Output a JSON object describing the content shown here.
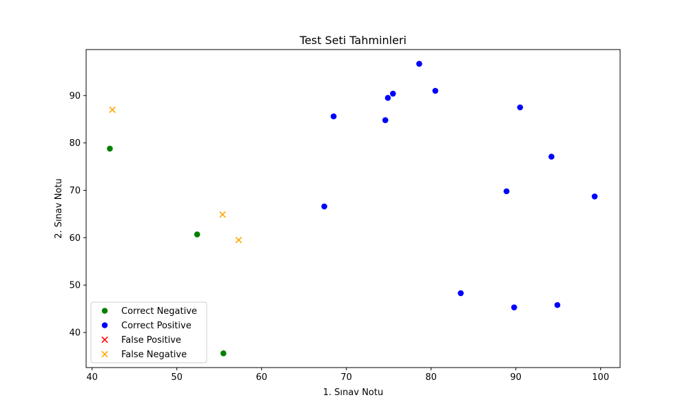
{
  "chart_data": {
    "type": "scatter",
    "title": "Test Seti Tahminleri",
    "xlabel": "1. Sınav Notu",
    "ylabel": "2. Sınav Notu",
    "xlim": [
      39.3,
      102.3
    ],
    "ylim": [
      32.6,
      99.7
    ],
    "xticks": [
      40,
      50,
      60,
      70,
      80,
      90,
      100
    ],
    "yticks": [
      40,
      50,
      60,
      70,
      80,
      90
    ],
    "grid": false,
    "legend_position": "lower-left",
    "series": [
      {
        "name": "Correct Negative",
        "color": "#008000",
        "marker": "circle",
        "points": [
          [
            42.1,
            78.8
          ],
          [
            52.4,
            60.7
          ],
          [
            55.5,
            35.6
          ]
        ]
      },
      {
        "name": "Correct Positive",
        "color": "#0000ff",
        "marker": "circle",
        "points": [
          [
            78.6,
            96.7
          ],
          [
            75.5,
            90.4
          ],
          [
            74.9,
            89.5
          ],
          [
            80.5,
            91.0
          ],
          [
            68.5,
            85.6
          ],
          [
            74.6,
            84.8
          ],
          [
            90.5,
            87.5
          ],
          [
            94.2,
            77.1
          ],
          [
            88.9,
            69.8
          ],
          [
            99.3,
            68.7
          ],
          [
            67.4,
            66.6
          ],
          [
            83.5,
            48.3
          ],
          [
            89.8,
            45.3
          ],
          [
            94.9,
            45.8
          ]
        ]
      },
      {
        "name": "False Positive",
        "color": "#ff0000",
        "marker": "x",
        "points": []
      },
      {
        "name": "False Negative",
        "color": "#ffa500",
        "marker": "x",
        "points": [
          [
            42.4,
            87.0
          ],
          [
            55.4,
            64.9
          ],
          [
            57.3,
            59.5
          ]
        ]
      }
    ]
  }
}
